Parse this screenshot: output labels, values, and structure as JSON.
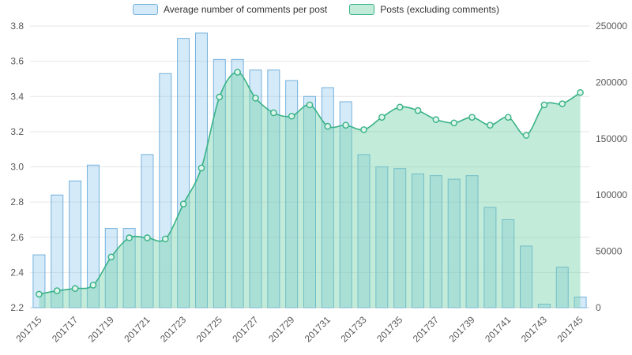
{
  "chart_data": {
    "type": "combo-bar-area-line",
    "categories": [
      "201715",
      "201716",
      "201717",
      "201718",
      "201719",
      "201720",
      "201721",
      "201722",
      "201723",
      "201724",
      "201725",
      "201726",
      "201727",
      "201728",
      "201729",
      "201730",
      "201731",
      "201732",
      "201733",
      "201734",
      "201735",
      "201736",
      "201737",
      "201738",
      "201739",
      "201740",
      "201741",
      "201742",
      "201743",
      "201744",
      "201745"
    ],
    "x_tick_every": 2,
    "series": [
      {
        "name": "Average number of comments per post",
        "type": "bar",
        "axis": "left",
        "values": [
          2.5,
          2.84,
          2.92,
          3.01,
          2.65,
          2.65,
          3.07,
          3.53,
          3.73,
          3.76,
          3.61,
          3.61,
          3.55,
          3.55,
          3.49,
          3.4,
          3.45,
          3.37,
          3.07,
          3.0,
          2.99,
          2.96,
          2.95,
          2.93,
          2.95,
          2.77,
          2.7,
          2.55,
          2.22,
          2.43,
          2.26
        ]
      },
      {
        "name": "Posts (excluding comments)",
        "type": "area-line",
        "axis": "right",
        "values": [
          12000,
          15000,
          17000,
          20000,
          45000,
          62000,
          62000,
          61000,
          92000,
          124000,
          187000,
          209000,
          186000,
          173000,
          170000,
          180000,
          161000,
          162000,
          158000,
          169000,
          178000,
          175000,
          167000,
          164000,
          169000,
          162000,
          169000,
          153000,
          180000,
          181000,
          191000
        ]
      }
    ],
    "left_axis": {
      "min": 2.2,
      "max": 3.8,
      "tick_values": [
        3.8,
        3.6,
        3.4,
        3.2,
        3.0,
        2.8,
        2.6,
        2.4,
        2.2
      ],
      "tick_labels": [
        "3.8",
        "3.6",
        "3.4",
        "3.2",
        "3.0",
        "2.8",
        "2.6",
        "2.4",
        "2.2"
      ]
    },
    "right_axis": {
      "min": 0,
      "max": 250000,
      "tick_values": [
        250000,
        200000,
        150000,
        100000,
        50000,
        0
      ],
      "tick_labels": [
        "250000",
        "200000",
        "150000",
        "100000",
        "50000",
        "0"
      ]
    },
    "grid": true,
    "legend_position": "top",
    "colors": {
      "bar_fill": "#7dbde8",
      "bar_fill_opacity": 0.32,
      "bar_stroke": "#74b1dd",
      "line": "#38b287",
      "area_fill": "#6fcfa8",
      "area_fill_opacity": 0.42,
      "marker_fill": "#def5eb",
      "grid_line": "#e6e6e6",
      "axis_line": "#cccccc",
      "axis_text": "#595959"
    }
  }
}
